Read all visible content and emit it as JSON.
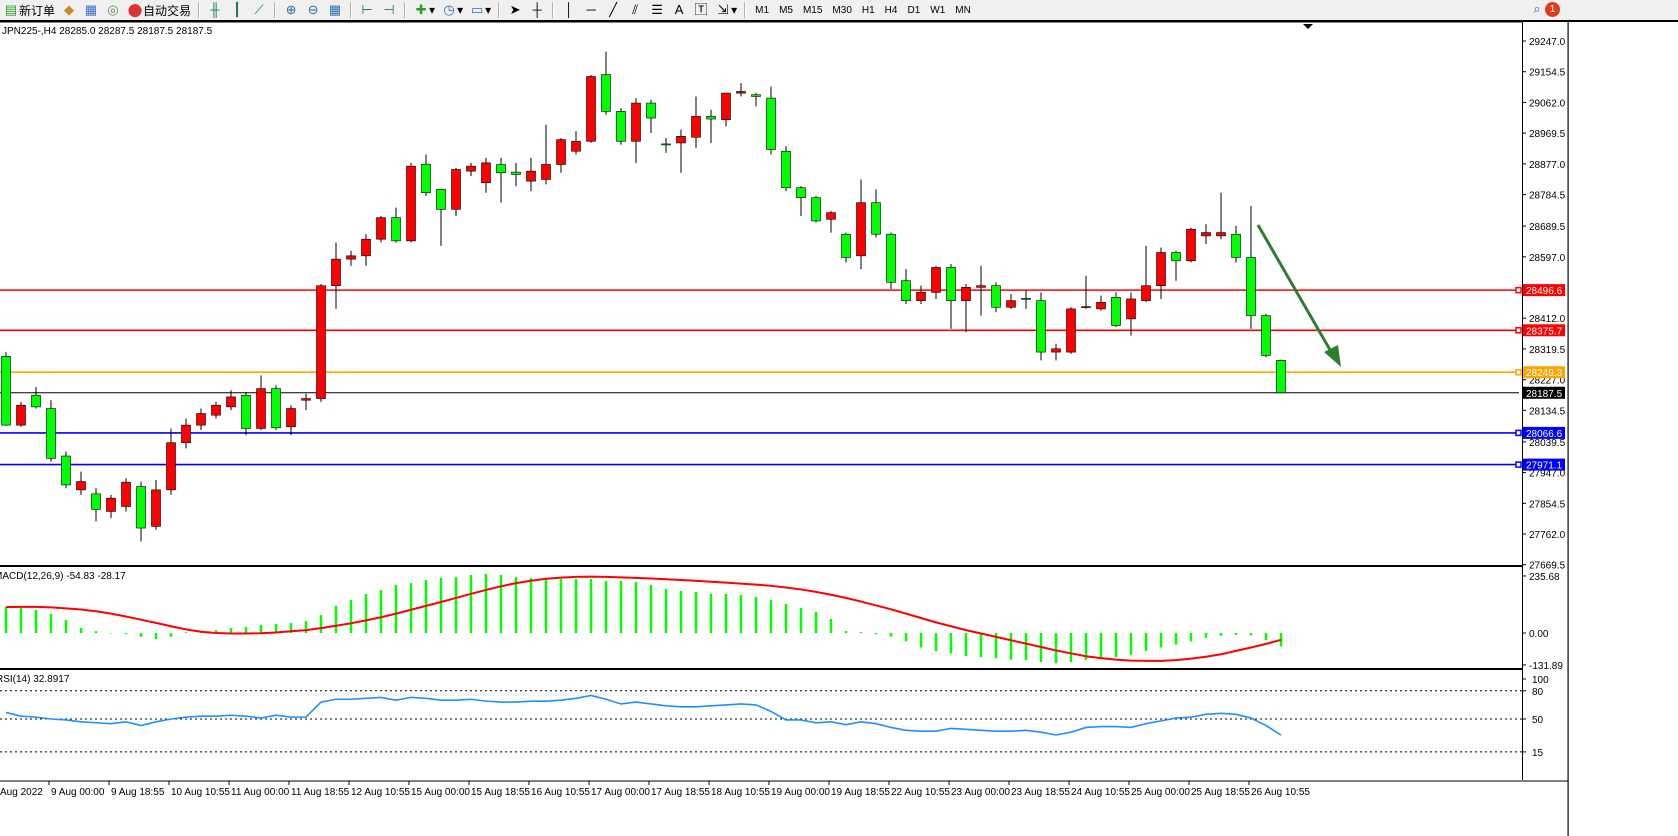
{
  "toolbar": {
    "new_order": "新订单",
    "auto_trade": "自动交易",
    "icons": [
      "new-order-icon",
      "history-icon",
      "market-watch-icon",
      "signal-icon",
      "auto-trade-icon",
      "bar-chart-icon",
      "candlestick-icon",
      "line-chart-icon",
      "zoom-in-icon",
      "zoom-out-icon",
      "tile-windows-icon",
      "auto-scroll-icon",
      "chart-shift-icon",
      "indicators-icon",
      "periods-icon",
      "templates-icon",
      "cursor-icon",
      "crosshair-icon",
      "vertical-line-icon",
      "horizontal-line-icon",
      "trendline-icon",
      "equidistant-channel-icon",
      "fibonacci-icon",
      "text-icon",
      "text-label-icon",
      "arrows-icon"
    ],
    "text_tool": "A",
    "timeframes": [
      "M1",
      "M5",
      "M15",
      "M30",
      "H1",
      "H4",
      "D1",
      "W1",
      "MN"
    ],
    "notification_count": "1"
  },
  "chart": {
    "header": "JPN225-,H4  28285.0 28287.5 28187.5 28187.5",
    "symbol": "JPN225-",
    "timeframe": "H4",
    "colors": {
      "bull": "#ff0000",
      "bear": "#00ff00",
      "wick": "#000000"
    }
  },
  "chart_data": [
    {
      "type": "candlestick",
      "ohlc": [
        [
          28297,
          28309,
          28088,
          28090
        ],
        [
          28090,
          28160,
          28085,
          28150
        ],
        [
          28180,
          28205,
          28140,
          28145
        ],
        [
          28140,
          28165,
          27980,
          27990
        ],
        [
          27997,
          28010,
          27900,
          27910
        ],
        [
          27895,
          27950,
          27880,
          27920
        ],
        [
          27883,
          27900,
          27800,
          27836
        ],
        [
          27830,
          27880,
          27810,
          27870
        ],
        [
          27845,
          27930,
          27830,
          27918
        ],
        [
          27905,
          27920,
          27740,
          27780
        ],
        [
          27785,
          27925,
          27775,
          27895
        ],
        [
          27895,
          28080,
          27880,
          28037
        ],
        [
          28037,
          28110,
          28020,
          28090
        ],
        [
          28090,
          28140,
          28075,
          28125
        ],
        [
          28120,
          28160,
          28110,
          28150
        ],
        [
          28145,
          28195,
          28135,
          28175
        ],
        [
          28180,
          28190,
          28060,
          28080
        ],
        [
          28080,
          28240,
          28075,
          28200
        ],
        [
          28200,
          28210,
          28075,
          28082
        ],
        [
          28085,
          28150,
          28060,
          28140
        ],
        [
          28165,
          28185,
          28135,
          28170
        ],
        [
          28170,
          28515,
          28160,
          28510
        ],
        [
          28510,
          28640,
          28440,
          28590
        ],
        [
          28590,
          28615,
          28570,
          28600
        ],
        [
          28600,
          28665,
          28570,
          28650
        ],
        [
          28650,
          28720,
          28640,
          28715
        ],
        [
          28715,
          28745,
          28640,
          28645
        ],
        [
          28645,
          28880,
          28640,
          28870
        ],
        [
          28876,
          28905,
          28780,
          28790
        ],
        [
          28800,
          28800,
          28630,
          28740
        ],
        [
          28740,
          28865,
          28720,
          28860
        ],
        [
          28855,
          28880,
          28840,
          28870
        ],
        [
          28820,
          28895,
          28790,
          28880
        ],
        [
          28875,
          28895,
          28760,
          28850
        ],
        [
          28852,
          28880,
          28810,
          28845
        ],
        [
          28825,
          28895,
          28795,
          28855
        ],
        [
          28830,
          28995,
          28815,
          28875
        ],
        [
          28875,
          28955,
          28850,
          28950
        ],
        [
          28915,
          28975,
          28905,
          28945
        ],
        [
          28945,
          29145,
          28940,
          29140
        ],
        [
          29146,
          29215,
          29025,
          29035
        ],
        [
          29035,
          29045,
          28935,
          28945
        ],
        [
          28945,
          29075,
          28880,
          29060
        ],
        [
          29060,
          29070,
          28970,
          29015
        ],
        [
          28937,
          28955,
          28910,
          28935
        ],
        [
          28940,
          28980,
          28850,
          28960
        ],
        [
          28957,
          29080,
          28925,
          29020
        ],
        [
          29020,
          29040,
          28940,
          29012
        ],
        [
          29010,
          29090,
          28990,
          29090
        ],
        [
          29090,
          29120,
          29080,
          29095
        ],
        [
          29085,
          29090,
          29050,
          29080
        ],
        [
          29075,
          29110,
          28905,
          28920
        ],
        [
          28915,
          28930,
          28795,
          28805
        ],
        [
          28805,
          28810,
          28720,
          28775
        ],
        [
          28775,
          28780,
          28700,
          28705
        ],
        [
          28710,
          28735,
          28670,
          28730
        ],
        [
          28665,
          28670,
          28580,
          28595
        ],
        [
          28600,
          28830,
          28560,
          28760
        ],
        [
          28760,
          28800,
          28655,
          28665
        ],
        [
          28665,
          28670,
          28500,
          28520
        ],
        [
          28525,
          28560,
          28455,
          28465
        ],
        [
          28465,
          28510,
          28455,
          28490
        ],
        [
          28490,
          28570,
          28470,
          28565
        ],
        [
          28565,
          28575,
          28380,
          28465
        ],
        [
          28465,
          28515,
          28370,
          28505
        ],
        [
          28505,
          28570,
          28420,
          28510
        ],
        [
          28510,
          28520,
          28430,
          28445
        ],
        [
          28445,
          28485,
          28440,
          28465
        ],
        [
          28472,
          28495,
          28440,
          28470
        ],
        [
          28465,
          28490,
          28285,
          28310
        ],
        [
          28310,
          28335,
          28285,
          28320
        ],
        [
          28310,
          28445,
          28305,
          28440
        ],
        [
          28445,
          28540,
          28440,
          28447
        ],
        [
          28440,
          28480,
          28435,
          28460
        ],
        [
          28475,
          28490,
          28385,
          28390
        ],
        [
          28410,
          28490,
          28360,
          28470
        ],
        [
          28465,
          28630,
          28460,
          28510
        ],
        [
          28510,
          28625,
          28470,
          28610
        ],
        [
          28610,
          28615,
          28525,
          28585
        ],
        [
          28585,
          28685,
          28580,
          28680
        ],
        [
          28660,
          28695,
          28635,
          28670
        ],
        [
          28660,
          28790,
          28650,
          28670
        ],
        [
          28665,
          28690,
          28580,
          28595
        ],
        [
          28595,
          28750,
          28380,
          28420
        ],
        [
          28420,
          28425,
          28295,
          28300
        ],
        [
          28285.0,
          28287.5,
          28187.5,
          28187.5
        ]
      ],
      "yaxis_ticks": [
        "29247.0",
        "29154.5",
        "29062.0",
        "28969.5",
        "28877.0",
        "28784.5",
        "28689.5",
        "28597.0",
        "28412.0",
        "28319.5",
        "28227.0",
        "28134.5",
        "28039.5",
        "27947.0",
        "27854.5",
        "27762.0",
        "27669.5"
      ],
      "ylim": [
        27669.5,
        29247.0
      ],
      "levels": [
        {
          "price": "28496.6",
          "color": "#ff0000"
        },
        {
          "price": "28375.7",
          "color": "#ff0000"
        },
        {
          "price": "28249.3",
          "color": "#ffa500"
        },
        {
          "price": "28187.5",
          "color": "#000000",
          "kind": "bid"
        },
        {
          "price": "28066.6",
          "color": "#0000ff"
        },
        {
          "price": "27971.1",
          "color": "#0000ff"
        }
      ],
      "annotation": {
        "type": "arrow",
        "direction": "down",
        "color": "#2e7d32"
      }
    },
    {
      "type": "bar+line",
      "label": "MACD(12,26,9) -54.83 -28.17",
      "yaxis_ticks": [
        "235.68",
        "0.00",
        "-131.89"
      ],
      "histogram": [
        107,
        103,
        95,
        79,
        54,
        21,
        8,
        -2,
        -5,
        -16,
        -25,
        -16,
        3,
        8,
        12,
        20,
        25,
        33,
        37,
        41,
        50,
        74,
        112,
        136,
        161,
        178,
        198,
        206,
        219,
        227,
        231,
        240,
        244,
        240,
        231,
        227,
        223,
        223,
        223,
        223,
        215,
        215,
        211,
        198,
        182,
        174,
        169,
        161,
        161,
        157,
        149,
        136,
        120,
        103,
        87,
        58,
        8,
        4,
        -5,
        -15,
        -35,
        -60,
        -75,
        -85,
        -95,
        -100,
        -105,
        -110,
        -112,
        -120,
        -125,
        -120,
        -112,
        -108,
        -100,
        -90,
        -75,
        -60,
        -48,
        -35,
        -20,
        -12,
        -8,
        -10,
        -30,
        -54.83
      ],
      "signal": [
        107,
        108,
        108,
        106,
        102,
        97,
        90,
        80,
        68,
        55,
        42,
        28,
        15,
        5,
        0,
        -2,
        -2,
        -1,
        2,
        7,
        12,
        20,
        30,
        40,
        52,
        65,
        80,
        96,
        112,
        128,
        145,
        162,
        178,
        193,
        206,
        216,
        224,
        229,
        232,
        233,
        232,
        230,
        228,
        225,
        222,
        219,
        216,
        212,
        208,
        204,
        200,
        195,
        188,
        180,
        170,
        158,
        145,
        130,
        114,
        98,
        80,
        62,
        44,
        28,
        12,
        -2,
        -16,
        -30,
        -44,
        -58,
        -72,
        -84,
        -96,
        -104,
        -110,
        -114,
        -115,
        -115,
        -112,
        -106,
        -98,
        -88,
        -74,
        -60,
        -45,
        -28.17
      ],
      "colors": {
        "histogram": "#00ff00",
        "signal": "#ff0000"
      }
    },
    {
      "type": "line",
      "label": "RSI(14) 32.8917",
      "yaxis_ticks": [
        "100",
        "80",
        "50",
        "15"
      ],
      "levels": [
        80,
        50,
        15
      ],
      "values": [
        57,
        53,
        52,
        50,
        49,
        47,
        46,
        45,
        47,
        43,
        47,
        50,
        52,
        53,
        53,
        54,
        53,
        51,
        54,
        52,
        52,
        68,
        71,
        71,
        72,
        73,
        70,
        73,
        72,
        70,
        70,
        71,
        69,
        68,
        68,
        69,
        69,
        70,
        72,
        75,
        71,
        66,
        68,
        66,
        64,
        63,
        63,
        64,
        65,
        66,
        65,
        58,
        49,
        49,
        46,
        47,
        44,
        47,
        45,
        41,
        38,
        37,
        37,
        40,
        39,
        38,
        37,
        37,
        38,
        36,
        33,
        36,
        41,
        42,
        42,
        41,
        45,
        48,
        51,
        52,
        55,
        56,
        55,
        51,
        43,
        32.8917
      ],
      "color": "#1e90ff"
    }
  ],
  "time_axis": [
    "Aug 2022",
    "9 Aug 00:00",
    "9 Aug 18:55",
    "10 Aug 10:55",
    "11 Aug 00:00",
    "11 Aug 18:55",
    "12 Aug 10:55",
    "15 Aug 00:00",
    "15 Aug 18:55",
    "16 Aug 10:55",
    "17 Aug 00:00",
    "17 Aug 18:55",
    "18 Aug 10:55",
    "19 Aug 00:00",
    "19 Aug 18:55",
    "22 Aug 10:55",
    "23 Aug 00:00",
    "23 Aug 18:55",
    "24 Aug 10:55",
    "25 Aug 00:00",
    "25 Aug 18:55",
    "26 Aug 10:55"
  ]
}
